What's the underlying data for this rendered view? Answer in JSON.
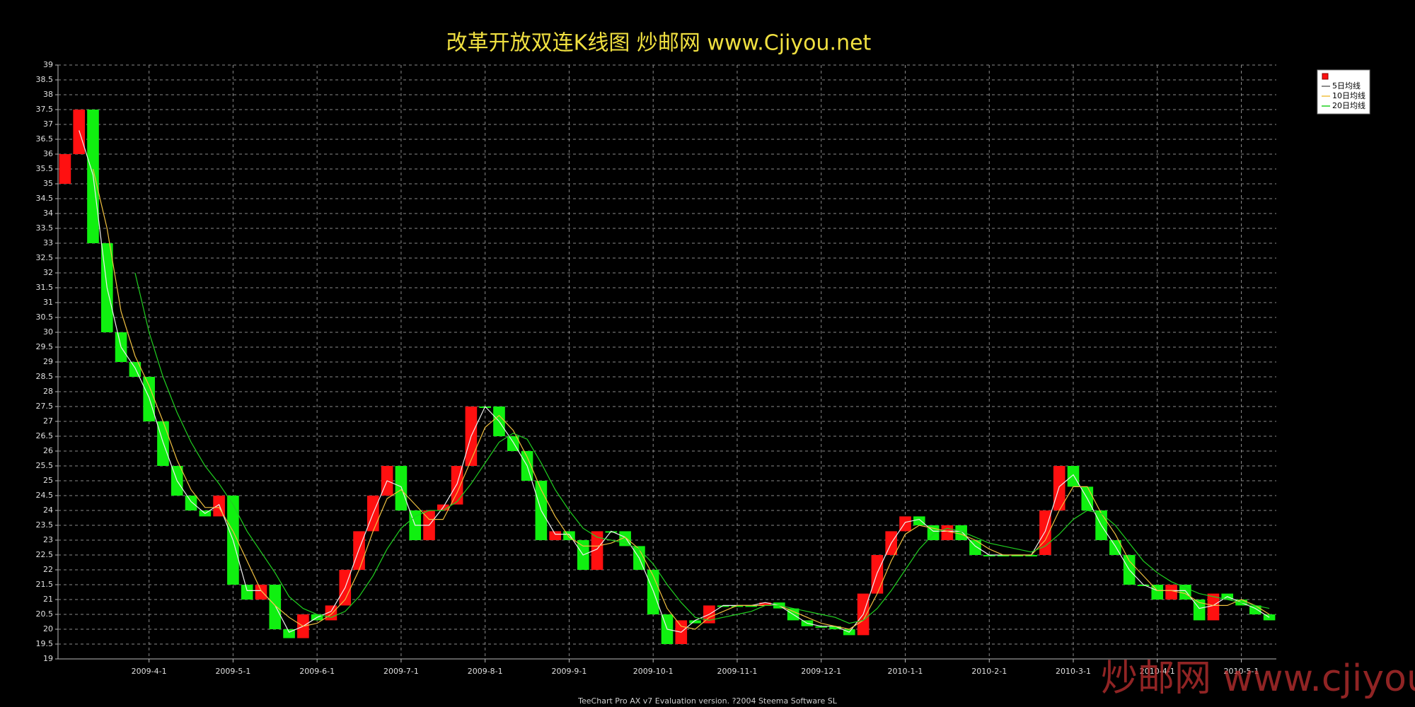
{
  "chart_data": {
    "type": "candlestick",
    "title": "改革开放双连K线图  炒邮网 www.Cjiyou.net",
    "footer": "TeeChart Pro AX v7 Evaluation version. ?2004 Steema Software SL",
    "watermark": "炒邮网 www.cjiyou.net",
    "categories": [
      null,
      null,
      null,
      null,
      null,
      null,
      "2009-4-1",
      null,
      null,
      null,
      null,
      null,
      "2009-5-1",
      null,
      null,
      null,
      null,
      null,
      "2009-6-1",
      null,
      null,
      null,
      null,
      null,
      "2009-7-1",
      null,
      null,
      null,
      null,
      null,
      "2009-8-1",
      null,
      null,
      null,
      null,
      null,
      "2009-9-1",
      null,
      null,
      null,
      null,
      null,
      "2009-10-1",
      null,
      null,
      null,
      null,
      null,
      "2009-11-1",
      null,
      null,
      null,
      null,
      null,
      "2009-12-1",
      null,
      null,
      null,
      null,
      null,
      "2010-1-1",
      null,
      null,
      null,
      null,
      null,
      "2010-2-1",
      null,
      null,
      null,
      null,
      null,
      "2010-3-1",
      null,
      null,
      null,
      null,
      null,
      "2010-4-1",
      null,
      null,
      null,
      null,
      null,
      "2010-5-1",
      null,
      null
    ],
    "candles": {
      "up_color": "#ff1010",
      "down_color": "#10f010",
      "open": [
        35,
        36,
        37.5,
        33,
        30,
        29,
        28.5,
        27,
        25.5,
        24.5,
        24,
        23.8,
        24.5,
        21.5,
        21,
        21.5,
        20,
        19.7,
        20.5,
        20.3,
        20.8,
        22,
        23.3,
        24.5,
        25.5,
        24,
        23,
        24,
        24.2,
        25.5,
        27.5,
        27.5,
        26.5,
        26,
        25,
        23,
        23.3,
        23,
        22,
        23.3,
        23.3,
        22.8,
        22,
        20.5,
        19.5,
        20.3,
        20.2,
        20.8,
        20.8,
        20.8,
        20.8,
        20.9,
        20.7,
        20.3,
        20.1,
        20.1,
        20,
        19.8,
        21.2,
        22.5,
        23.3,
        23.8,
        23.5,
        23,
        23.5,
        23,
        22.5,
        22.5,
        22.5,
        22.5,
        22.5,
        24,
        25.5,
        24.8,
        24,
        23,
        22.5,
        21.5,
        21.5,
        21,
        21.5,
        21,
        20.3,
        21.2,
        21,
        20.8,
        20.5
      ],
      "close": [
        36,
        37.5,
        33,
        30,
        29,
        28.5,
        27,
        25.5,
        24.5,
        24,
        23.8,
        24.5,
        21.5,
        21,
        21.5,
        20,
        19.7,
        20.5,
        20.3,
        20.8,
        22,
        23.3,
        24.5,
        25.5,
        24,
        23,
        24,
        24.2,
        25.5,
        27.5,
        27.5,
        26.5,
        26,
        25,
        23,
        23.3,
        23,
        22,
        23.3,
        23.3,
        22.8,
        22,
        20.5,
        19.5,
        20.3,
        20.2,
        20.8,
        20.8,
        20.8,
        20.8,
        20.9,
        20.7,
        20.3,
        20.1,
        20.1,
        20,
        19.8,
        21.2,
        22.5,
        23.3,
        23.8,
        23.5,
        23,
        23.5,
        23,
        22.5,
        22.5,
        22.5,
        22.5,
        22.5,
        24,
        25.5,
        24.8,
        24,
        23,
        22.5,
        21.5,
        21.5,
        21,
        21.5,
        21,
        20.3,
        21.2,
        21,
        20.8,
        20.5,
        20.3
      ]
    },
    "series": [
      {
        "name": "5日均线",
        "color": "#f0f0f0",
        "values": [
          null,
          36.8,
          35.3,
          31.5,
          29.5,
          28.8,
          27.8,
          26.3,
          25,
          24.3,
          23.9,
          24.2,
          23,
          21.3,
          21.3,
          20.8,
          19.9,
          20.1,
          20.4,
          20.6,
          21.4,
          22.7,
          23.9,
          25,
          24.8,
          23.5,
          23.5,
          24.1,
          24.9,
          26.5,
          27.5,
          27,
          26.3,
          25.5,
          24,
          23.2,
          23.2,
          22.5,
          22.7,
          23.3,
          23.1,
          22.4,
          21.3,
          20,
          19.9,
          20.3,
          20.5,
          20.8,
          20.8,
          20.8,
          20.9,
          20.8,
          20.5,
          20.2,
          20.1,
          20.1,
          19.9,
          20.5,
          21.9,
          22.9,
          23.6,
          23.7,
          23.3,
          23.3,
          23.3,
          22.8,
          22.5,
          22.5,
          22.5,
          22.5,
          23.3,
          24.8,
          25.2,
          24.4,
          23.5,
          22.8,
          22,
          21.5,
          21.3,
          21.3,
          21.3,
          20.7,
          20.8,
          21.1,
          20.9,
          20.7,
          20.4
        ]
      },
      {
        "name": "10日均线",
        "color": "#f0c040",
        "values": [
          null,
          null,
          35.5,
          33.5,
          30.7,
          29.2,
          28.2,
          27,
          25.7,
          24.7,
          24.1,
          24.1,
          23.3,
          22.3,
          21.3,
          20.8,
          20.4,
          20.1,
          20.2,
          20.5,
          21,
          22,
          23.3,
          24.4,
          24.7,
          24.2,
          23.7,
          23.7,
          24.6,
          25.7,
          26.8,
          27.2,
          26.7,
          25.8,
          24.7,
          23.8,
          23.1,
          22.8,
          22.8,
          22.9,
          23.1,
          22.7,
          21.8,
          20.7,
          20.1,
          20,
          20.4,
          20.6,
          20.8,
          20.8,
          20.8,
          20.8,
          20.6,
          20.4,
          20.2,
          20.1,
          20,
          20.3,
          21.2,
          22.3,
          23.2,
          23.5,
          23.4,
          23.3,
          23.2,
          23,
          22.7,
          22.5,
          22.5,
          22.5,
          23,
          24,
          24.8,
          24.8,
          23.9,
          23.2,
          22.3,
          21.8,
          21.3,
          21.3,
          21.2,
          20.9,
          20.8,
          20.8,
          21,
          20.8,
          20.5
        ]
      },
      {
        "name": "20日均线",
        "color": "#20d020",
        "values": [
          null,
          null,
          null,
          null,
          null,
          32,
          30,
          28.5,
          27.3,
          26.3,
          25.5,
          24.9,
          24.2,
          23.3,
          22.6,
          21.9,
          21.1,
          20.7,
          20.5,
          20.4,
          20.6,
          21.1,
          21.8,
          22.7,
          23.4,
          23.8,
          24,
          24,
          24.3,
          24.9,
          25.6,
          26.3,
          26.6,
          26.4,
          25.6,
          24.7,
          24,
          23.4,
          23.1,
          23,
          22.9,
          22.7,
          22.2,
          21.5,
          20.9,
          20.4,
          20.3,
          20.4,
          20.5,
          20.6,
          20.8,
          20.8,
          20.7,
          20.6,
          20.5,
          20.4,
          20.2,
          20.3,
          20.7,
          21.3,
          22,
          22.7,
          23.2,
          23.4,
          23.3,
          23.1,
          22.9,
          22.8,
          22.7,
          22.6,
          22.8,
          23.2,
          23.7,
          24,
          23.9,
          23.5,
          22.9,
          22.3,
          21.9,
          21.6,
          21.4,
          21.2,
          21.1,
          21,
          20.9,
          20.8,
          20.7
        ]
      }
    ],
    "ylim": [
      19,
      39
    ],
    "yticks": [
      19,
      19.5,
      20,
      20.5,
      21,
      21.5,
      22,
      22.5,
      23,
      23.5,
      24,
      24.5,
      25,
      25.5,
      26,
      26.5,
      27,
      27.5,
      28,
      28.5,
      29,
      29.5,
      30,
      30.5,
      31,
      31.5,
      32,
      32.5,
      33,
      33.5,
      34,
      34.5,
      35,
      35.5,
      36,
      36.5,
      37,
      37.5,
      38,
      38.5,
      39
    ],
    "grid": true,
    "legend": "top-right"
  }
}
